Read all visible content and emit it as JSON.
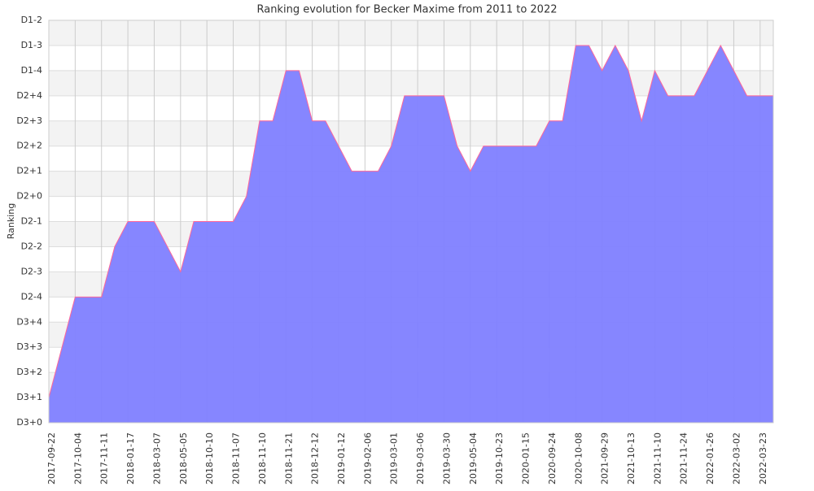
{
  "chart_data": {
    "type": "area",
    "title": "Ranking evolution for Becker Maxime from 2011 to 2022",
    "y_label": "Ranking",
    "categories": [
      "2017-09-22",
      null,
      "2017-10-04",
      null,
      "2017-11-11",
      null,
      "2018-01-17",
      null,
      "2018-03-07",
      null,
      "2018-05-05",
      null,
      "2018-10-10",
      null,
      "2018-11-07",
      null,
      "2018-11-10",
      null,
      "2018-11-21",
      null,
      "2018-12-12",
      null,
      "2019-01-12",
      null,
      "2019-02-06",
      null,
      "2019-03-01",
      null,
      "2019-03-06",
      null,
      "2019-03-30",
      null,
      "2019-05-04",
      null,
      "2019-10-23",
      null,
      "2020-01-15",
      null,
      "2020-09-24",
      null,
      "2020-10-08",
      null,
      "2021-09-29",
      null,
      "2021-10-13",
      null,
      "2021-11-10",
      null,
      "2021-11-24",
      null,
      "2022-01-26",
      null,
      "2022-03-02",
      null,
      "2022-03-23",
      null
    ],
    "values": [
      1,
      3,
      5,
      5,
      5,
      7,
      8,
      8,
      8,
      7,
      6,
      8,
      8,
      8,
      8,
      9,
      12,
      12,
      14,
      14,
      12,
      12,
      11,
      10,
      10,
      10,
      11,
      13,
      13,
      13,
      13,
      11,
      10,
      11,
      11,
      11,
      11,
      11,
      12,
      12,
      15,
      15,
      14,
      15,
      14,
      12,
      14,
      13,
      13,
      13,
      14,
      15,
      14,
      13,
      13,
      13
    ],
    "color": "#8080ff",
    "line_color": "#ff6699",
    "ylim": [
      0,
      16
    ],
    "yticks": [
      {
        "value": 0,
        "label": "D3+0"
      },
      {
        "value": 1,
        "label": "D3+1"
      },
      {
        "value": 2,
        "label": "D3+2"
      },
      {
        "value": 3,
        "label": "D3+3"
      },
      {
        "value": 4,
        "label": "D3+4"
      },
      {
        "value": 5,
        "label": "D2-4"
      },
      {
        "value": 6,
        "label": "D2-3"
      },
      {
        "value": 7,
        "label": "D2-2"
      },
      {
        "value": 8,
        "label": "D2-1"
      },
      {
        "value": 9,
        "label": "D2+0"
      },
      {
        "value": 10,
        "label": "D2+1"
      },
      {
        "value": 11,
        "label": "D2+2"
      },
      {
        "value": 12,
        "label": "D2+3"
      },
      {
        "value": 13,
        "label": "D2+4"
      },
      {
        "value": 14,
        "label": "D1-4"
      },
      {
        "value": 15,
        "label": "D1-3"
      },
      {
        "value": 16,
        "label": "D1-2"
      }
    ],
    "grid": true
  }
}
